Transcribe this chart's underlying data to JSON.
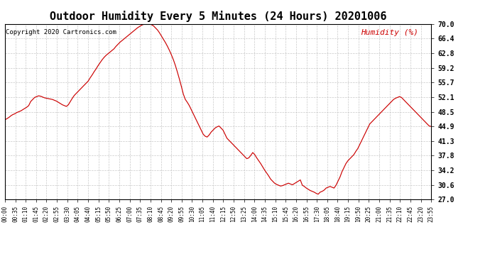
{
  "title": "Outdoor Humidity Every 5 Minutes (24 Hours) 20201006",
  "copyright_text": "Copyright 2020 Cartronics.com",
  "legend_text": "Humidity (%)",
  "legend_color": "#cc0000",
  "line_color": "#cc0000",
  "background_color": "#ffffff",
  "grid_color": "#bbbbbb",
  "title_fontsize": 11,
  "copyright_fontsize": 6.5,
  "legend_fontsize": 8,
  "ylabel_values": [
    27.0,
    30.6,
    34.2,
    37.8,
    41.3,
    44.9,
    48.5,
    52.1,
    55.7,
    59.2,
    62.8,
    66.4,
    70.0
  ],
  "x_tick_labels": [
    "00:00",
    "00:35",
    "01:10",
    "01:45",
    "02:20",
    "02:55",
    "03:30",
    "04:05",
    "04:40",
    "05:15",
    "05:50",
    "06:25",
    "07:00",
    "07:35",
    "08:10",
    "08:45",
    "09:20",
    "09:55",
    "10:30",
    "11:05",
    "11:40",
    "12:15",
    "12:50",
    "13:25",
    "14:00",
    "14:35",
    "15:10",
    "15:45",
    "16:20",
    "16:55",
    "17:30",
    "18:05",
    "18:40",
    "19:15",
    "19:50",
    "20:25",
    "21:00",
    "21:35",
    "22:10",
    "22:45",
    "23:20",
    "23:55"
  ],
  "ylim": [
    27.0,
    70.0
  ],
  "humidity_data": [
    46.5,
    46.8,
    47.1,
    47.5,
    47.8,
    48.0,
    48.3,
    48.5,
    48.7,
    49.0,
    49.3,
    49.6,
    50.0,
    51.0,
    51.5,
    52.0,
    52.2,
    52.4,
    52.3,
    52.1,
    51.9,
    51.8,
    51.7,
    51.6,
    51.5,
    51.3,
    51.1,
    50.8,
    50.5,
    50.2,
    50.0,
    49.8,
    50.2,
    51.0,
    51.8,
    52.5,
    53.0,
    53.5,
    54.0,
    54.5,
    55.0,
    55.5,
    56.0,
    56.8,
    57.5,
    58.3,
    59.0,
    59.8,
    60.5,
    61.2,
    61.8,
    62.3,
    62.7,
    63.1,
    63.5,
    63.9,
    64.5,
    65.0,
    65.5,
    65.9,
    66.3,
    66.7,
    67.1,
    67.5,
    67.9,
    68.3,
    68.7,
    69.1,
    69.4,
    69.7,
    69.9,
    70.0,
    70.0,
    70.0,
    69.8,
    69.5,
    69.0,
    68.5,
    67.8,
    67.0,
    66.2,
    65.4,
    64.5,
    63.5,
    62.4,
    61.2,
    59.8,
    58.2,
    56.5,
    54.7,
    52.8,
    51.5,
    50.8,
    50.0,
    49.0,
    48.0,
    47.0,
    46.0,
    45.0,
    44.0,
    43.0,
    42.5,
    42.3,
    42.8,
    43.5,
    44.0,
    44.5,
    44.8,
    45.0,
    44.5,
    44.0,
    43.0,
    42.0,
    41.5,
    41.0,
    40.5,
    40.0,
    39.5,
    39.0,
    38.5,
    38.0,
    37.5,
    37.0,
    37.2,
    37.8,
    38.5,
    38.0,
    37.2,
    36.5,
    35.8,
    35.0,
    34.2,
    33.5,
    32.8,
    32.0,
    31.5,
    31.0,
    30.7,
    30.5,
    30.3,
    30.4,
    30.6,
    30.8,
    31.0,
    30.8,
    30.6,
    30.9,
    31.2,
    31.5,
    31.8,
    30.5,
    30.2,
    29.8,
    29.5,
    29.2,
    29.0,
    28.8,
    28.5,
    28.3,
    28.8,
    29.0,
    29.3,
    29.8,
    30.0,
    30.2,
    30.0,
    29.8,
    30.5,
    31.5,
    32.5,
    33.8,
    34.8,
    35.8,
    36.5,
    37.0,
    37.5,
    38.0,
    38.8,
    39.5,
    40.5,
    41.5,
    42.5,
    43.5,
    44.5,
    45.5,
    46.0,
    46.5,
    47.0,
    47.5,
    48.0,
    48.5,
    49.0,
    49.5,
    50.0,
    50.5,
    51.0,
    51.5,
    51.8,
    52.0,
    52.2,
    52.0,
    51.5,
    51.0,
    50.5,
    50.0,
    49.5,
    49.0,
    48.5,
    48.0,
    47.5,
    47.0,
    46.5,
    46.0,
    45.5,
    45.0,
    44.9
  ]
}
